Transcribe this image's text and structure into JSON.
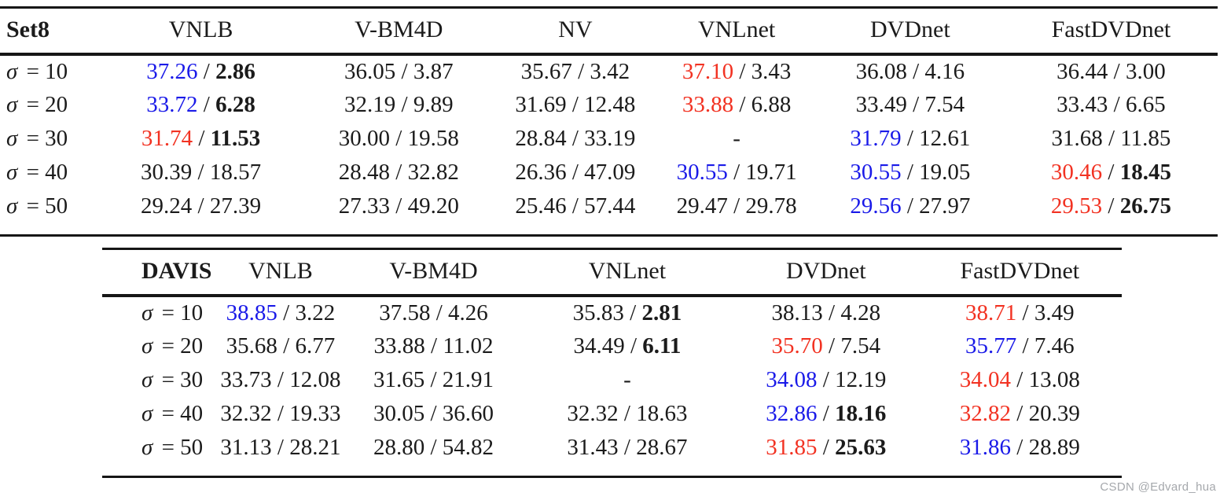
{
  "colors": {
    "psnr_second_best": "#1a1ae8",
    "psnr_best": "#f23222",
    "text": "#1b1b1b",
    "rule": "#161616",
    "watermark": "#a5a8ac"
  },
  "separators": {
    "value": "/"
  },
  "watermark": {
    "text": "CSDN @Edvard_hua"
  },
  "tables": {
    "set8": {
      "columns": [
        "Set8",
        "VNLB",
        "V-BM4D",
        "NV",
        "VNLnet",
        "DVDnet",
        "FastDVDnet"
      ],
      "rows": [
        {
          "sigma": "σ",
          "eq": "=",
          "level": "10",
          "cells": [
            {
              "psnr": "37.26",
              "psnr_color": "blue",
              "time": "2.86",
              "time_bold": true
            },
            {
              "psnr": "36.05",
              "time": "3.87"
            },
            {
              "psnr": "35.67",
              "time": "3.42"
            },
            {
              "psnr": "37.10",
              "psnr_color": "red",
              "time": "3.43"
            },
            {
              "psnr": "36.08",
              "time": "4.16"
            },
            {
              "psnr": "36.44",
              "time": "3.00"
            }
          ]
        },
        {
          "sigma": "σ",
          "eq": "=",
          "level": "20",
          "cells": [
            {
              "psnr": "33.72",
              "psnr_color": "blue",
              "time": "6.28",
              "time_bold": true
            },
            {
              "psnr": "32.19",
              "time": "9.89"
            },
            {
              "psnr": "31.69",
              "time": "12.48"
            },
            {
              "psnr": "33.88",
              "psnr_color": "red",
              "time": "6.88"
            },
            {
              "psnr": "33.49",
              "time": "7.54"
            },
            {
              "psnr": "33.43",
              "time": "6.65"
            }
          ]
        },
        {
          "sigma": "σ",
          "eq": "=",
          "level": "30",
          "cells": [
            {
              "psnr": "31.74",
              "psnr_color": "red",
              "time": "11.53",
              "time_bold": true
            },
            {
              "psnr": "30.00",
              "time": "19.58"
            },
            {
              "psnr": "28.84",
              "time": "33.19"
            },
            {
              "empty": "-"
            },
            {
              "psnr": "31.79",
              "psnr_color": "blue",
              "time": "12.61"
            },
            {
              "psnr": "31.68",
              "time": "11.85"
            }
          ]
        },
        {
          "sigma": "σ",
          "eq": "=",
          "level": "40",
          "cells": [
            {
              "psnr": "30.39",
              "time": "18.57"
            },
            {
              "psnr": "28.48",
              "time": "32.82"
            },
            {
              "psnr": "26.36",
              "time": "47.09"
            },
            {
              "psnr": "30.55",
              "psnr_color": "blue",
              "time": "19.71"
            },
            {
              "psnr": "30.55",
              "psnr_color": "blue",
              "time": "19.05"
            },
            {
              "psnr": "30.46",
              "psnr_color": "red",
              "time": "18.45",
              "time_bold": true
            }
          ]
        },
        {
          "sigma": "σ",
          "eq": "=",
          "level": "50",
          "cells": [
            {
              "psnr": "29.24",
              "time": "27.39"
            },
            {
              "psnr": "27.33",
              "time": "49.20"
            },
            {
              "psnr": "25.46",
              "time": "57.44"
            },
            {
              "psnr": "29.47",
              "time": "29.78"
            },
            {
              "psnr": "29.56",
              "psnr_color": "blue",
              "time": "27.97"
            },
            {
              "psnr": "29.53",
              "psnr_color": "red",
              "time": "26.75",
              "time_bold": true
            }
          ]
        }
      ]
    },
    "davis": {
      "columns": [
        "DAVIS",
        "VNLB",
        "V-BM4D",
        "VNLnet",
        "DVDnet",
        "FastDVDnet"
      ],
      "rows": [
        {
          "sigma": "σ",
          "eq": "=",
          "level": "10",
          "cells": [
            {
              "psnr": "38.85",
              "psnr_color": "blue",
              "time": "3.22"
            },
            {
              "psnr": "37.58",
              "time": "4.26"
            },
            {
              "psnr": "35.83",
              "time": "2.81",
              "time_bold": true
            },
            {
              "psnr": "38.13",
              "time": "4.28"
            },
            {
              "psnr": "38.71",
              "psnr_color": "red",
              "time": "3.49"
            }
          ]
        },
        {
          "sigma": "σ",
          "eq": "=",
          "level": "20",
          "cells": [
            {
              "psnr": "35.68",
              "time": "6.77"
            },
            {
              "psnr": "33.88",
              "time": "11.02"
            },
            {
              "psnr": "34.49",
              "time": "6.11",
              "time_bold": true
            },
            {
              "psnr": "35.70",
              "psnr_color": "red",
              "time": "7.54"
            },
            {
              "psnr": "35.77",
              "psnr_color": "blue",
              "time": "7.46"
            }
          ]
        },
        {
          "sigma": "σ",
          "eq": "=",
          "level": "30",
          "cells": [
            {
              "psnr": "33.73",
              "time": "12.08"
            },
            {
              "psnr": "31.65",
              "time": "21.91"
            },
            {
              "empty": "-"
            },
            {
              "psnr": "34.08",
              "psnr_color": "blue",
              "time": "12.19"
            },
            {
              "psnr": "34.04",
              "psnr_color": "red",
              "time": "13.08"
            }
          ]
        },
        {
          "sigma": "σ",
          "eq": "=",
          "level": "40",
          "cells": [
            {
              "psnr": "32.32",
              "time": "19.33"
            },
            {
              "psnr": "30.05",
              "time": "36.60"
            },
            {
              "psnr": "32.32",
              "time": "18.63"
            },
            {
              "psnr": "32.86",
              "psnr_color": "blue",
              "time": "18.16",
              "time_bold": true
            },
            {
              "psnr": "32.82",
              "psnr_color": "red",
              "time": "20.39"
            }
          ]
        },
        {
          "sigma": "σ",
          "eq": "=",
          "level": "50",
          "cells": [
            {
              "psnr": "31.13",
              "time": "28.21"
            },
            {
              "psnr": "28.80",
              "time": "54.82"
            },
            {
              "psnr": "31.43",
              "time": "28.67"
            },
            {
              "psnr": "31.85",
              "psnr_color": "red",
              "time": "25.63",
              "time_bold": true
            },
            {
              "psnr": "31.86",
              "psnr_color": "blue",
              "time": "28.89"
            }
          ]
        }
      ]
    }
  }
}
